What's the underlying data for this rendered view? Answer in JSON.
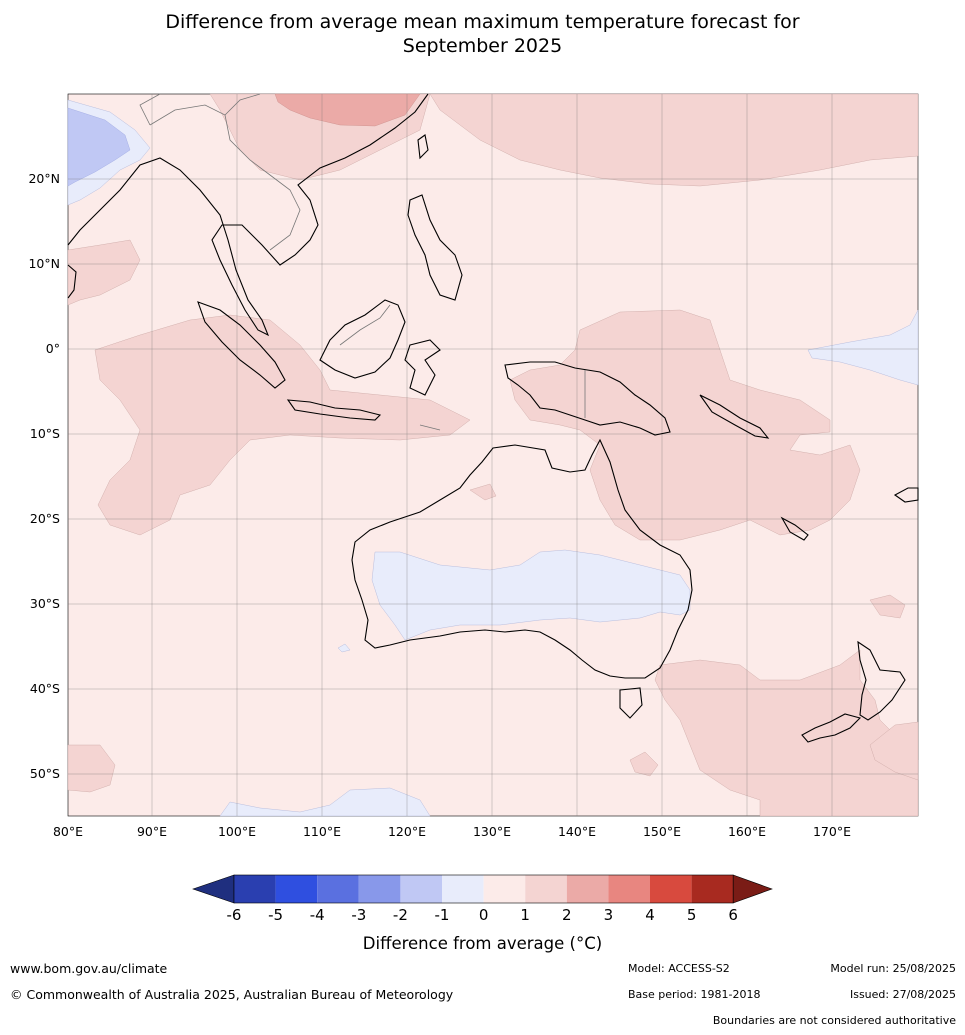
{
  "title_line1": "Difference from average mean maximum temperature forecast for",
  "title_line2": "September 2025",
  "lat_labels": [
    "20°N",
    "10°N",
    "0°",
    "10°S",
    "20°S",
    "30°S",
    "40°S",
    "50°S"
  ],
  "lon_labels": [
    "80°E",
    "90°E",
    "100°E",
    "110°E",
    "120°E",
    "130°E",
    "140°E",
    "150°E",
    "160°E",
    "170°E"
  ],
  "colorbar": {
    "ticks": [
      "-6",
      "-5",
      "-4",
      "-3",
      "-2",
      "-1",
      "0",
      "1",
      "2",
      "3",
      "4",
      "5",
      "6"
    ],
    "colors": [
      "#1f2f7f",
      "#2a3fb0",
      "#2f4fe0",
      "#5a70e0",
      "#8898ea",
      "#c0c8f4",
      "#e8ecfb",
      "#fcebe9",
      "#f4d4d2",
      "#ebaaa7",
      "#e88680",
      "#d84a3e",
      "#a82a20",
      "#7a1c16"
    ],
    "label": "Difference from average (°C)"
  },
  "footer": {
    "website": "www.bom.gov.au/climate",
    "copyright": "© Commonwealth of Australia 2025, Australian Bureau of Meteorology",
    "model": "Model: ACCESS-S2",
    "base_period": "Base period: 1981-2018",
    "model_run": "Model run: 25/08/2025",
    "issued": "Issued: 27/08/2025",
    "disclaimer": "Boundaries are not considered authoritative"
  },
  "map_colors": {
    "background_0_1": "#fcebe9",
    "anomaly_1_2": "#f4d4d2",
    "anomaly_2_3": "#ebaaa7",
    "anomaly_neg1_0": "#e8ecfb",
    "anomaly_neg2_neg1": "#c0c8f4"
  }
}
